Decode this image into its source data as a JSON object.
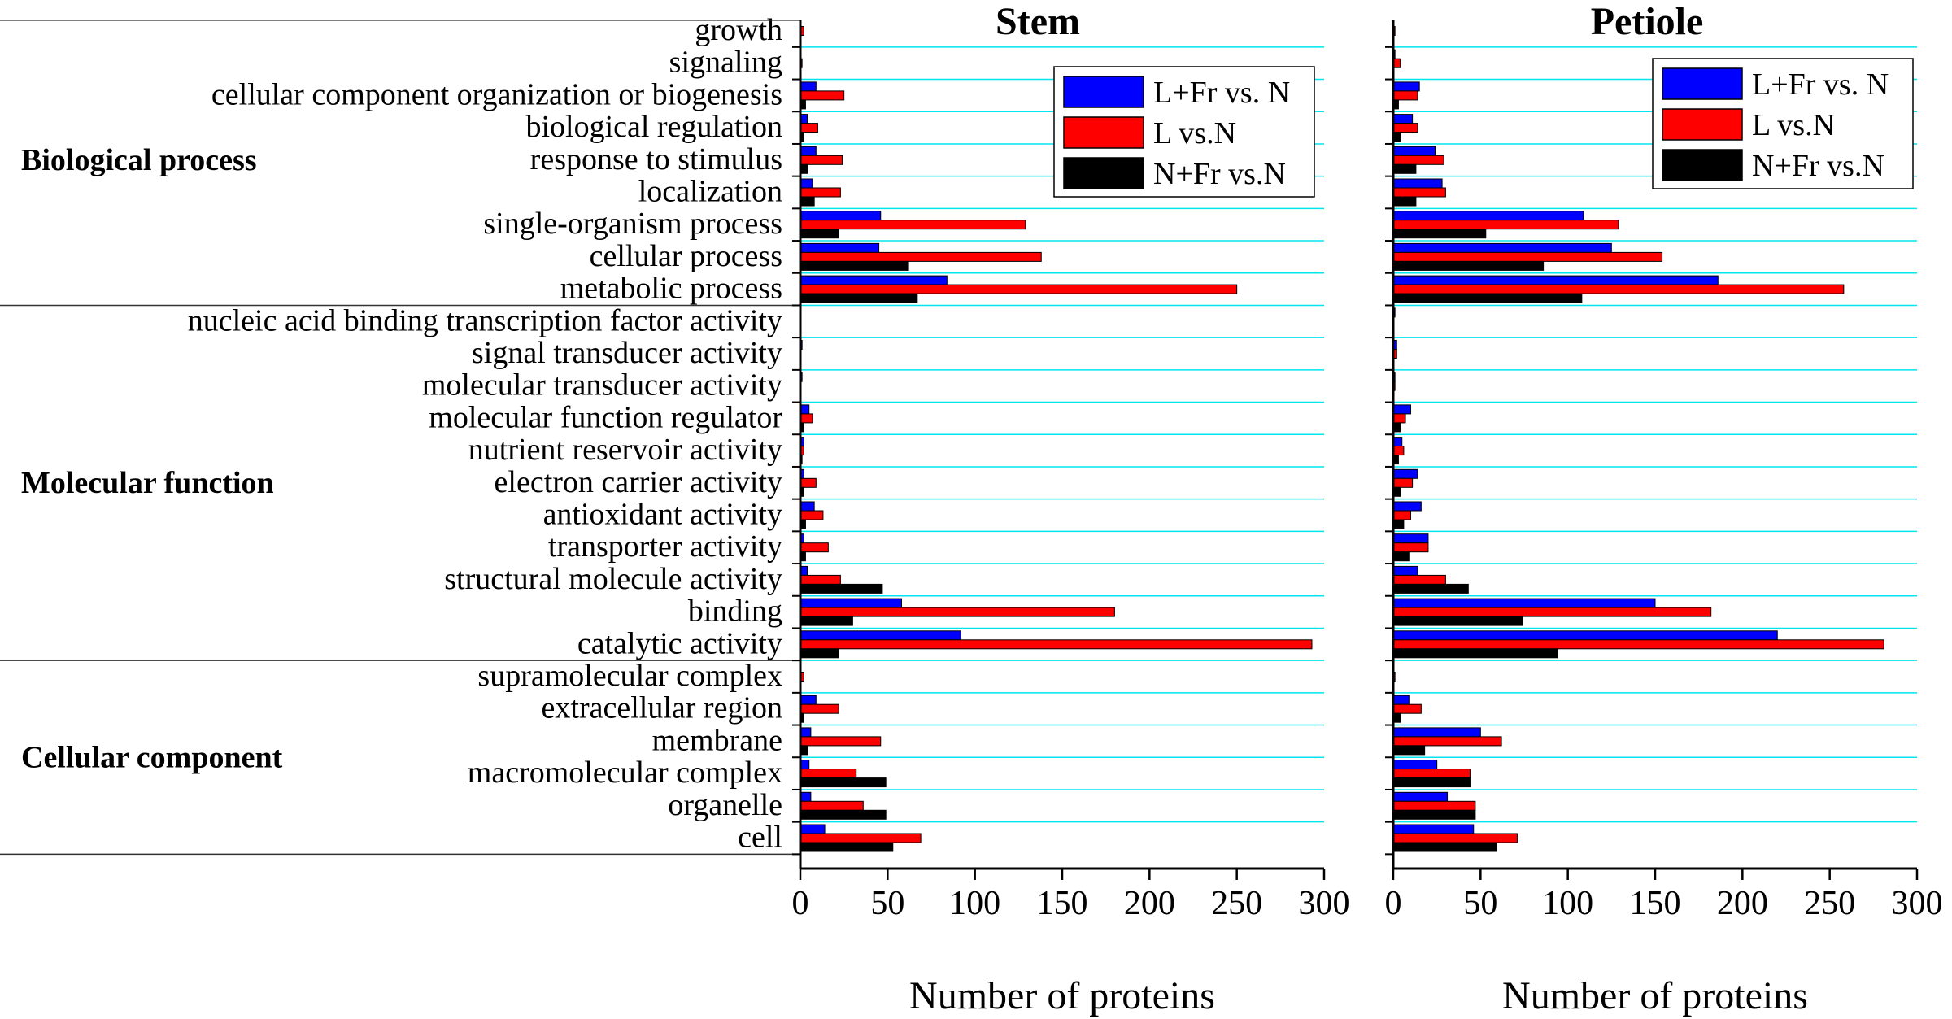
{
  "colors": {
    "series_1": "#0000ff",
    "series_2": "#ff0000",
    "series_3": "#000000",
    "gridline": "#00e5ee"
  },
  "groups": [
    {
      "label": "Biological process",
      "first_category": 0,
      "last_category": 8
    },
    {
      "label": "Molecular function",
      "first_category": 9,
      "last_category": 19
    },
    {
      "label": "Cellular component",
      "first_category": 20,
      "last_category": 25
    }
  ],
  "chart_data": [
    {
      "type": "bar",
      "orientation": "horizontal",
      "title": "Stem",
      "xlabel": "Number of proteins",
      "ylabel": "",
      "xlim": [
        0,
        300
      ],
      "xticks": [
        0,
        50,
        100,
        150,
        200,
        250,
        300
      ],
      "legend_position": "top-right",
      "categories": [
        "growth",
        "signaling",
        "cellular component organization or biogenesis",
        "biological regulation",
        "response to stimulus",
        "localization",
        "single-organism process",
        "cellular process",
        "metabolic process",
        "nucleic acid binding transcription factor activity",
        "signal transducer activity",
        "molecular transducer activity",
        "molecular function regulator",
        "nutrient reservoir activity",
        "electron carrier activity",
        "antioxidant activity",
        "transporter activity",
        "structural molecule activity",
        "binding",
        "catalytic activity",
        "supramolecular complex",
        "extracellular region",
        "membrane",
        "macromolecular complex",
        "organelle",
        "cell"
      ],
      "series": [
        {
          "name": "L+Fr vs. N",
          "values": [
            0,
            0,
            9,
            4,
            9,
            7,
            46,
            45,
            84,
            0,
            1,
            1,
            5,
            2,
            2,
            8,
            2,
            4,
            58,
            92,
            0,
            9,
            6,
            5,
            6,
            14
          ]
        },
        {
          "name": "L vs.N",
          "values": [
            2,
            1,
            25,
            10,
            24,
            23,
            129,
            138,
            250,
            0,
            0,
            0,
            7,
            2,
            9,
            13,
            16,
            23,
            180,
            293,
            2,
            22,
            46,
            32,
            36,
            69
          ]
        },
        {
          "name": "N+Fr vs.N",
          "values": [
            0,
            0,
            3,
            2,
            4,
            8,
            22,
            62,
            67,
            0,
            0,
            0,
            2,
            1,
            2,
            3,
            3,
            47,
            30,
            22,
            0,
            2,
            4,
            49,
            49,
            53
          ]
        }
      ]
    },
    {
      "type": "bar",
      "orientation": "horizontal",
      "title": "Petiole",
      "xlabel": "Number of proteins",
      "ylabel": "",
      "xlim": [
        0,
        300
      ],
      "xticks": [
        0,
        50,
        100,
        150,
        200,
        250,
        300
      ],
      "legend_position": "top-right",
      "categories": [
        "growth",
        "signaling",
        "cellular component organization or biogenesis",
        "biological regulation",
        "response to stimulus",
        "localization",
        "single-organism process",
        "cellular process",
        "metabolic process",
        "nucleic acid binding transcription factor activity",
        "signal transducer activity",
        "molecular transducer activity",
        "molecular function regulator",
        "nutrient reservoir activity",
        "electron carrier activity",
        "antioxidant activity",
        "transporter activity",
        "structural molecule activity",
        "binding",
        "catalytic activity",
        "supramolecular complex",
        "extracellular region",
        "membrane",
        "macromolecular complex",
        "organelle",
        "cell"
      ],
      "series": [
        {
          "name": "L+Fr vs. N",
          "values": [
            0,
            1,
            15,
            11,
            24,
            28,
            109,
            125,
            186,
            1,
            2,
            1,
            10,
            5,
            14,
            16,
            20,
            14,
            150,
            220,
            0,
            9,
            50,
            25,
            31,
            46
          ]
        },
        {
          "name": "L vs.N",
          "values": [
            1,
            4,
            14,
            14,
            29,
            30,
            129,
            154,
            258,
            0,
            2,
            1,
            7,
            6,
            11,
            10,
            20,
            30,
            182,
            281,
            1,
            16,
            62,
            44,
            47,
            71
          ]
        },
        {
          "name": "N+Fr vs.N",
          "values": [
            0,
            0,
            3,
            4,
            13,
            13,
            53,
            86,
            108,
            0,
            0,
            0,
            4,
            3,
            4,
            6,
            9,
            43,
            74,
            94,
            0,
            4,
            18,
            44,
            47,
            59
          ]
        }
      ]
    }
  ]
}
